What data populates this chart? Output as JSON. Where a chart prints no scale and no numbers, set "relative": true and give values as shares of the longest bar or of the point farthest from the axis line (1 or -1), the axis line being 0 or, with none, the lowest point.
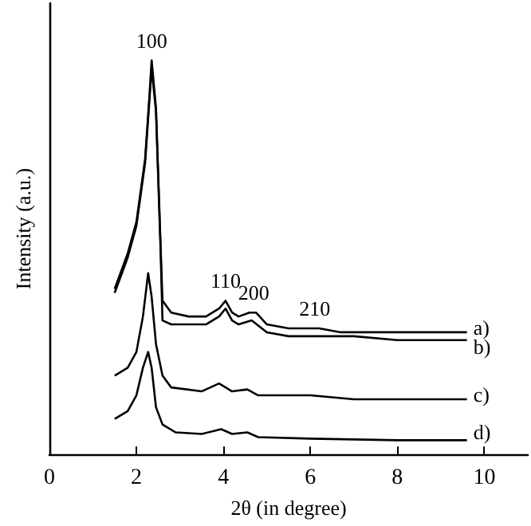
{
  "chart_data": {
    "type": "line",
    "relative": true,
    "xlabel": "2θ (in degree)",
    "ylabel": "Intensity (a.u.)",
    "xlim": [
      0,
      11
    ],
    "xticks": [
      0,
      2,
      4,
      6,
      8,
      10
    ],
    "grid": false,
    "legend": false,
    "marker": "none",
    "line_style": "solid",
    "annotations": [
      {
        "text": "100",
        "x": 2.35,
        "y": 1.0
      },
      {
        "text": "110",
        "x": 4.05,
        "y": 0.39
      },
      {
        "text": "200",
        "x": 4.7,
        "y": 0.36
      },
      {
        "text": "210",
        "x": 6.1,
        "y": 0.32
      }
    ],
    "series": [
      {
        "name": "a)",
        "color": "#000000",
        "x": [
          1.5,
          1.8,
          2.0,
          2.2,
          2.3,
          2.35,
          2.45,
          2.55,
          2.6,
          2.8,
          3.2,
          3.6,
          3.9,
          4.05,
          4.2,
          4.35,
          4.6,
          4.75,
          5.0,
          5.5,
          6.0,
          6.2,
          6.7,
          8.0,
          9.6
        ],
        "values": [
          0.42,
          0.51,
          0.59,
          0.75,
          0.91,
          1.0,
          0.88,
          0.55,
          0.39,
          0.36,
          0.35,
          0.35,
          0.37,
          0.39,
          0.36,
          0.35,
          0.36,
          0.36,
          0.33,
          0.32,
          0.32,
          0.32,
          0.31,
          0.31,
          0.31
        ]
      },
      {
        "name": "b)",
        "color": "#000000",
        "x": [
          1.5,
          1.8,
          2.0,
          2.2,
          2.3,
          2.35,
          2.45,
          2.55,
          2.6,
          2.8,
          3.2,
          3.6,
          3.9,
          4.05,
          4.2,
          4.35,
          4.65,
          5.0,
          5.5,
          6.1,
          7.0,
          8.0,
          9.6
        ],
        "values": [
          0.41,
          0.5,
          0.58,
          0.74,
          0.9,
          0.98,
          0.87,
          0.54,
          0.34,
          0.33,
          0.33,
          0.33,
          0.35,
          0.37,
          0.34,
          0.33,
          0.34,
          0.31,
          0.3,
          0.3,
          0.3,
          0.29,
          0.29
        ]
      },
      {
        "name": "c)",
        "color": "#000000",
        "x": [
          1.5,
          1.8,
          2.0,
          2.15,
          2.27,
          2.35,
          2.45,
          2.6,
          2.8,
          3.5,
          3.9,
          4.2,
          4.55,
          4.8,
          6.0,
          7.0,
          9.6
        ],
        "values": [
          0.2,
          0.22,
          0.26,
          0.35,
          0.46,
          0.4,
          0.28,
          0.2,
          0.17,
          0.16,
          0.18,
          0.16,
          0.165,
          0.15,
          0.15,
          0.14,
          0.14
        ]
      },
      {
        "name": "d)",
        "color": "#000000",
        "x": [
          1.5,
          1.8,
          2.0,
          2.15,
          2.27,
          2.35,
          2.45,
          2.6,
          2.9,
          3.5,
          3.95,
          4.2,
          4.55,
          4.8,
          6.0,
          8.0,
          9.6
        ],
        "values": [
          0.09,
          0.11,
          0.15,
          0.22,
          0.26,
          0.22,
          0.12,
          0.076,
          0.056,
          0.052,
          0.064,
          0.052,
          0.056,
          0.044,
          0.04,
          0.036,
          0.036
        ]
      }
    ]
  }
}
